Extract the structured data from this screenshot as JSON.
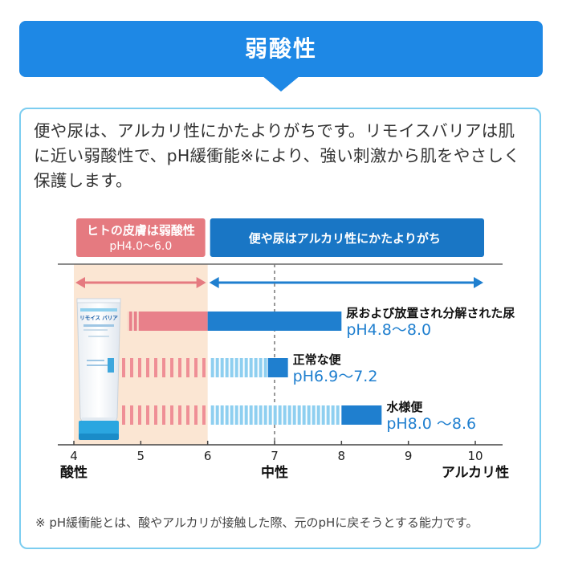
{
  "header": {
    "title": "弱酸性",
    "color": "#1e88e5"
  },
  "description": "便や尿は、アルカリ性にかたよりがちです。リモイスバリアは肌に近い弱酸性で、pH緩衝能※により、強い刺激から肌をやさしく保護します。",
  "chart_data": {
    "type": "bar",
    "xlim": [
      4,
      10
    ],
    "ticks": [
      "4",
      "5",
      "6",
      "7",
      "8",
      "9",
      "10"
    ],
    "axis_labels": {
      "acid": "酸性",
      "neutral": "中性",
      "alkaline": "アルカリ性"
    },
    "skin_range": {
      "title": "ヒトの皮膚は弱酸性",
      "range_label": "pH4.0～6.0",
      "from": 4.0,
      "to": 6.0,
      "color": "#e57a80"
    },
    "alkaline_banner": {
      "title": "便や尿はアルカリ性にかたよりがち",
      "from": 6.0,
      "to": 10.0,
      "color": "#1976c5"
    },
    "neutral_line": 7,
    "series": [
      {
        "name": "尿および放置され分解された尿",
        "range_label": "pH4.8～8.0",
        "from": 4.8,
        "to": 8.0,
        "style": "solid"
      },
      {
        "name": "正常な便",
        "range_label": "pH6.9～7.2",
        "from": 6.9,
        "to": 7.2,
        "style": "striped"
      },
      {
        "name": "水様便",
        "range_label": "pH8.0 ～8.6",
        "from": 8.0,
        "to": 8.6,
        "style": "striped"
      }
    ]
  },
  "product": {
    "brand": "リモイス バリア"
  },
  "footnote": "※ pH緩衝能とは、酸やアルカリが接触した際、元のpHに戻そうとする能力です。"
}
